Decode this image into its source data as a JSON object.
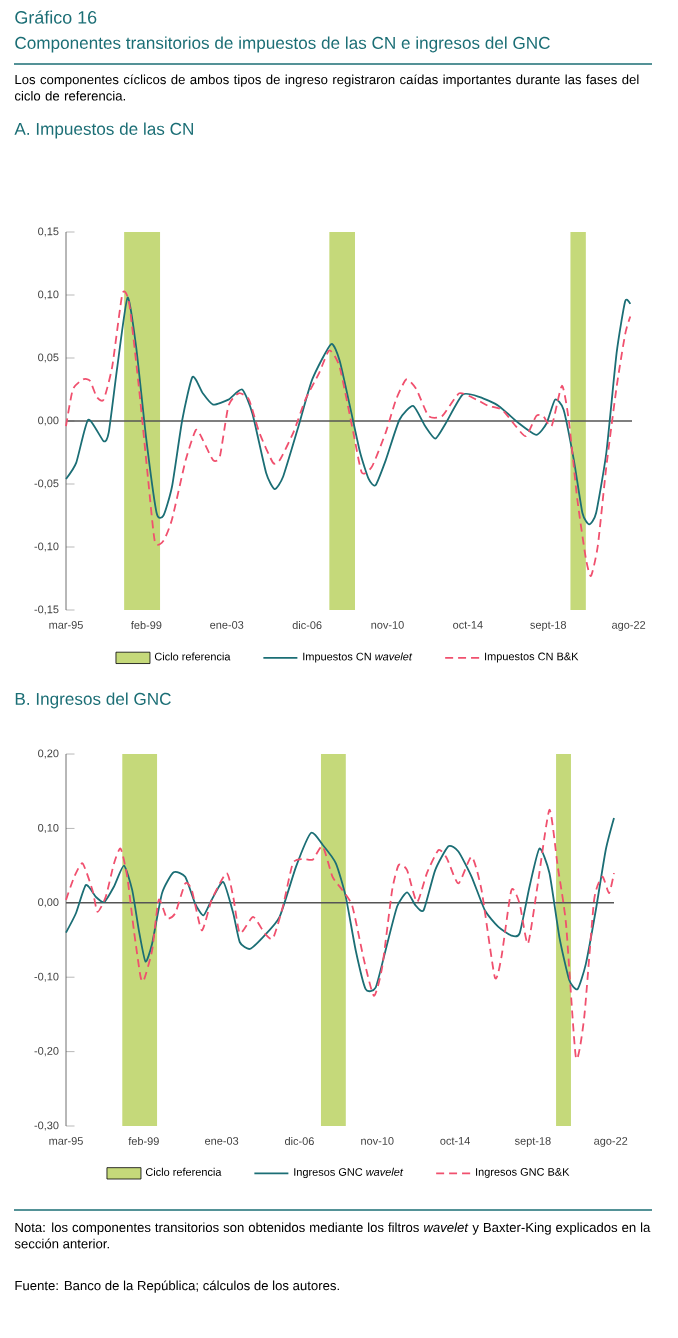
{
  "chart_data": [
    {
      "type": "line",
      "title": "A. Impuestos de las CN",
      "annotations": [
        "Gráfico 16",
        "Componentes transitorios de impuestos de las CN e ingresos del GNC",
        "Los componentes cíclicos de ambos tipos de ingreso registraron caídas importantes durante las fases del ciclo de referencia."
      ],
      "xlim": [
        "1995-03",
        "2022-10"
      ],
      "ylim": [
        -0.15,
        0.15
      ],
      "xticks": [
        {
          "value": "1995-03",
          "label": "mar-95"
        },
        {
          "value": "1999-02",
          "label": "feb-99"
        },
        {
          "value": "2003-01",
          "label": "ene-03"
        },
        {
          "value": "2006-12",
          "label": "dic-06"
        },
        {
          "value": "2010-11",
          "label": "nov-10"
        },
        {
          "value": "2014-10",
          "label": "oct-14"
        },
        {
          "value": "2018-09",
          "label": "sept-18"
        },
        {
          "value": "2022-08",
          "label": "ago-22"
        }
      ],
      "yticks": [
        {
          "value": -0.15,
          "label": "-0,15"
        },
        {
          "value": -0.1,
          "label": "-0,10"
        },
        {
          "value": -0.05,
          "label": "-0,05"
        },
        {
          "value": 0,
          "label": "0,00"
        },
        {
          "value": 0.05,
          "label": "0,05"
        },
        {
          "value": 0.1,
          "label": "0,10"
        },
        {
          "value": 0.15,
          "label": "0,15"
        }
      ],
      "legend": "bottom",
      "bands": [
        {
          "axis": "x",
          "from": "1998-01",
          "to": "1999-10",
          "label": "Ciclo referencia",
          "color": "#c5d97a"
        },
        {
          "axis": "x",
          "from": "2008-01",
          "to": "2009-04",
          "color": "#c5d97a"
        },
        {
          "axis": "x",
          "from": "2019-10",
          "to": "2020-07",
          "color": "#c5d97a"
        }
      ],
      "ref_lines": [
        {
          "axis": "y",
          "value": 0,
          "color": "#555555"
        }
      ],
      "series": [
        {
          "name": "Impuestos CN *wavelet*",
          "color": "#1b6e75",
          "line_style": "solid",
          "x": [
            "1995-03",
            "1995-09",
            "1996-04",
            "1997-01",
            "1997-04",
            "1997-09",
            "1998-03",
            "1998-08",
            "1999-02",
            "1999-08",
            "1999-12",
            "2000-05",
            "2000-11",
            "2001-05",
            "2001-11",
            "2002-05",
            "2003-02",
            "2003-10",
            "2004-04",
            "2004-12",
            "2005-05",
            "2005-10",
            "2006-07",
            "2007-03",
            "2008-02",
            "2008-07",
            "2009-01",
            "2009-07",
            "2009-12",
            "2010-04",
            "2010-10",
            "2011-06",
            "2012-02",
            "2012-09",
            "2013-03",
            "2013-09",
            "2014-07",
            "2015-05",
            "2016-04",
            "2017-04",
            "2018-02",
            "2018-08",
            "2019-01",
            "2019-06",
            "2019-12",
            "2020-05",
            "2020-09",
            "2021-01",
            "2021-07",
            "2022-01",
            "2022-06",
            "2022-09"
          ],
          "values": [
            -0.046,
            -0.033,
            0.001,
            -0.016,
            -0.009,
            0.043,
            0.098,
            0.059,
            -0.015,
            -0.073,
            -0.075,
            -0.052,
            0.001,
            0.035,
            0.022,
            0.013,
            0.017,
            0.025,
            0.006,
            -0.041,
            -0.054,
            -0.044,
            -0.004,
            0.033,
            0.061,
            0.048,
            0.012,
            -0.025,
            -0.046,
            -0.051,
            -0.031,
            0.001,
            0.012,
            -0.004,
            -0.014,
            -0.002,
            0.021,
            0.019,
            0.012,
            -0.002,
            -0.011,
            -0.002,
            0.017,
            0.009,
            -0.031,
            -0.073,
            -0.082,
            -0.073,
            -0.025,
            0.054,
            0.095,
            0.093
          ]
        },
        {
          "name": "Impuestos CN B&K",
          "color": "#f0506e",
          "line_style": "dashed",
          "x": [
            "1995-03",
            "1995-07",
            "1996-01",
            "1996-05",
            "1996-09",
            "1997-01",
            "1997-06",
            "1997-12",
            "1998-04",
            "1998-10",
            "1999-03",
            "1999-07",
            "1999-12",
            "2000-05",
            "2001-01",
            "2001-07",
            "2001-11",
            "2002-05",
            "2002-09",
            "2003-02",
            "2003-08",
            "2004-02",
            "2004-08",
            "2005-04",
            "2005-08",
            "2006-04",
            "2006-11",
            "2007-07",
            "2008-01",
            "2008-07",
            "2009-03",
            "2009-08",
            "2010-02",
            "2010-10",
            "2011-04",
            "2011-10",
            "2012-04",
            "2012-11",
            "2013-07",
            "2014-05",
            "2015-03",
            "2015-10",
            "2016-06",
            "2017-02",
            "2017-08",
            "2018-02",
            "2018-06",
            "2018-11",
            "2019-05",
            "2019-09",
            "2020-02",
            "2020-07",
            "2020-10",
            "2021-02",
            "2021-07",
            "2022-01",
            "2022-06",
            "2022-09"
          ],
          "values": [
            -0.004,
            0.025,
            0.033,
            0.032,
            0.019,
            0.017,
            0.043,
            0.101,
            0.093,
            0.022,
            -0.046,
            -0.096,
            -0.095,
            -0.078,
            -0.031,
            -0.007,
            -0.015,
            -0.031,
            -0.028,
            0.012,
            0.022,
            0.017,
            -0.009,
            -0.033,
            -0.031,
            -0.009,
            0.017,
            0.038,
            0.056,
            0.043,
            -0.009,
            -0.041,
            -0.036,
            -0.009,
            0.017,
            0.033,
            0.025,
            0.004,
            0.004,
            0.022,
            0.017,
            0.012,
            0.009,
            -0.004,
            -0.012,
            0.004,
            0.004,
            -0.004,
            0.028,
            0.001,
            -0.062,
            -0.109,
            -0.123,
            -0.099,
            -0.036,
            0.027,
            0.069,
            0.083
          ]
        }
      ]
    },
    {
      "type": "line",
      "title": "B. Ingresos del GNC",
      "annotations": [
        "Nota: los componentes transitorios son obtenidos mediante los filtros *wavelet* y Baxter-King explicados en la sección anterior.",
        "Fuente: Banco de la República; cálculos de los autores."
      ],
      "xlim": [
        "1995-03",
        "2022-10"
      ],
      "ylim": [
        -0.3,
        0.2
      ],
      "xticks": [
        {
          "value": "1995-03",
          "label": "mar-95"
        },
        {
          "value": "1999-02",
          "label": "feb-99"
        },
        {
          "value": "2003-01",
          "label": "ene-03"
        },
        {
          "value": "2006-12",
          "label": "dic-06"
        },
        {
          "value": "2010-11",
          "label": "nov-10"
        },
        {
          "value": "2014-10",
          "label": "oct-14"
        },
        {
          "value": "2018-09",
          "label": "sept-18"
        },
        {
          "value": "2022-08",
          "label": "ago-22"
        }
      ],
      "yticks": [
        {
          "value": -0.3,
          "label": "-0,30"
        },
        {
          "value": -0.2,
          "label": "-0,20"
        },
        {
          "value": -0.1,
          "label": "-0,10"
        },
        {
          "value": 0,
          "label": "0,00"
        },
        {
          "value": 0.1,
          "label": "0,10"
        },
        {
          "value": 0.2,
          "label": "0,20"
        }
      ],
      "legend": "bottom",
      "bands": [
        {
          "axis": "x",
          "from": "1998-01",
          "to": "1999-10",
          "label": "Ciclo referencia",
          "color": "#c5d97a"
        },
        {
          "axis": "x",
          "from": "2008-01",
          "to": "2009-04",
          "color": "#c5d97a"
        },
        {
          "axis": "x",
          "from": "2019-11",
          "to": "2020-08",
          "color": "#c5d97a"
        }
      ],
      "ref_lines": [
        {
          "axis": "y",
          "value": 0,
          "color": "#555555"
        }
      ],
      "series": [
        {
          "name": "Ingresos GNC *wavelet*",
          "color": "#1b6e75",
          "line_style": "solid",
          "x": [
            "1995-03",
            "1995-09",
            "1996-03",
            "1996-09",
            "1997-02",
            "1997-08",
            "1998-02",
            "1998-07",
            "1998-11",
            "1999-03",
            "1999-07",
            "2000-01",
            "2000-08",
            "2001-03",
            "2001-09",
            "2002-02",
            "2002-07",
            "2003-02",
            "2003-08",
            "2003-12",
            "2004-06",
            "2005-02",
            "2005-12",
            "2006-10",
            "2007-07",
            "2008-02",
            "2008-10",
            "2009-04",
            "2009-10",
            "2010-04",
            "2010-10",
            "2011-04",
            "2011-11",
            "2012-05",
            "2012-10",
            "2013-03",
            "2013-10",
            "2014-06",
            "2014-12",
            "2015-08",
            "2016-04",
            "2016-12",
            "2017-08",
            "2018-01",
            "2018-07",
            "2019-01",
            "2019-07",
            "2020-01",
            "2020-07",
            "2020-12",
            "2021-05",
            "2021-11",
            "2022-05",
            "2022-10"
          ],
          "values": [
            -0.04,
            -0.014,
            0.024,
            0.008,
            0.001,
            0.022,
            0.05,
            0.017,
            -0.037,
            -0.079,
            -0.055,
            0.013,
            0.041,
            0.035,
            -0.001,
            -0.017,
            0.004,
            0.028,
            -0.014,
            -0.053,
            -0.062,
            -0.046,
            -0.019,
            0.049,
            0.094,
            0.078,
            0.053,
            0.008,
            -0.064,
            -0.116,
            -0.114,
            -0.064,
            -0.005,
            0.014,
            -0.003,
            -0.01,
            0.044,
            0.076,
            0.069,
            0.035,
            -0.01,
            -0.032,
            -0.044,
            -0.041,
            0.022,
            0.073,
            0.04,
            -0.046,
            -0.104,
            -0.116,
            -0.082,
            -0.01,
            0.071,
            0.114
          ]
        },
        {
          "name": "Ingresos GNC B&K",
          "color": "#f0506e",
          "line_style": "dashed",
          "x": [
            "1995-03",
            "1995-08",
            "1996-01",
            "1996-07",
            "1996-10",
            "1997-03",
            "1997-08",
            "1997-12",
            "1998-04",
            "1998-08",
            "1998-12",
            "1999-02",
            "1999-07",
            "1999-11",
            "2000-04",
            "2000-09",
            "2001-03",
            "2001-07",
            "2002-01",
            "2002-07",
            "2003-04",
            "2003-08",
            "2003-12",
            "2004-08",
            "2005-03",
            "2005-08",
            "2006-02",
            "2006-08",
            "2007-02",
            "2007-08",
            "2008-02",
            "2008-08",
            "2009-02",
            "2009-08",
            "2010-03",
            "2010-09",
            "2011-02",
            "2011-08",
            "2011-12",
            "2012-05",
            "2012-11",
            "2013-05",
            "2013-12",
            "2014-05",
            "2014-12",
            "2015-08",
            "2016-02",
            "2016-10",
            "2017-02",
            "2017-08",
            "2018-01",
            "2018-06",
            "2018-12",
            "2019-07",
            "2019-12",
            "2020-05",
            "2020-11",
            "2021-04",
            "2021-10",
            "2022-03",
            "2022-07",
            "2022-10"
          ],
          "values": [
            0.004,
            0.035,
            0.053,
            0.017,
            -0.012,
            0.008,
            0.053,
            0.073,
            0.035,
            -0.037,
            -0.099,
            -0.104,
            -0.064,
            0.004,
            -0.021,
            -0.014,
            0.026,
            0.017,
            -0.037,
            0.004,
            0.04,
            0.008,
            -0.041,
            -0.019,
            -0.041,
            -0.048,
            -0.005,
            0.053,
            0.059,
            0.058,
            0.076,
            0.035,
            0.017,
            -0.005,
            -0.077,
            -0.125,
            -0.086,
            0.017,
            0.051,
            0.044,
            0.001,
            0.04,
            0.071,
            0.06,
            0.026,
            0.062,
            0.017,
            -0.1,
            -0.073,
            0.017,
            -0.001,
            -0.055,
            0.026,
            0.125,
            0.049,
            -0.028,
            -0.208,
            -0.154,
            0.004,
            0.035,
            0.013,
            0.04
          ]
        }
      ]
    }
  ]
}
